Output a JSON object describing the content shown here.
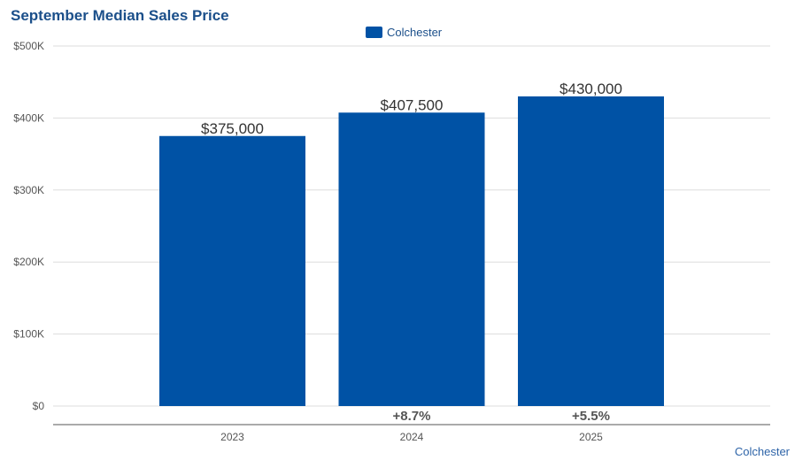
{
  "colors": {
    "bar": "#0052a5",
    "title": "#1b4f8a",
    "grid": "#dddddd",
    "axis": "#555555",
    "source": "#2e64a8"
  },
  "chart_data": {
    "type": "bar",
    "title": "September Median Sales Price",
    "legend": {
      "position": "top-center",
      "entries": [
        "Colchester"
      ]
    },
    "categories": [
      "2023",
      "2024",
      "2025"
    ],
    "series": [
      {
        "name": "Colchester",
        "values": [
          375000,
          407500,
          430000
        ],
        "value_labels": [
          "$375,000",
          "$407,500",
          "$430,000"
        ]
      }
    ],
    "change_labels": [
      "",
      "+8.7%",
      "+5.5%"
    ],
    "y_ticks": [
      0,
      100000,
      200000,
      300000,
      400000,
      500000
    ],
    "y_tick_labels": [
      "$0",
      "$100K",
      "$200K",
      "$300K",
      "$400K",
      "$500K"
    ],
    "ylim": [
      0,
      500000
    ],
    "grid": true,
    "source_label": "Colchester"
  }
}
